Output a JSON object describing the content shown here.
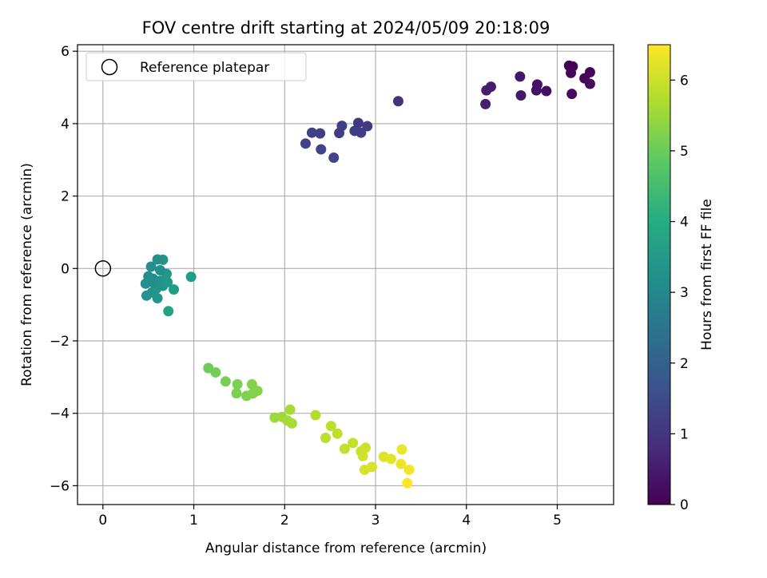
{
  "chart_data": {
    "type": "scatter",
    "title": "FOV centre drift starting at 2024/05/09 20:18:09",
    "xlabel": "Angular distance from reference (arcmin)",
    "ylabel": "Rotation from reference (arcmin)",
    "xlim": [
      -0.28,
      5.62
    ],
    "ylim": [
      -6.52,
      6.18
    ],
    "xticks": [
      0,
      1,
      2,
      3,
      4,
      5
    ],
    "yticks": [
      -6,
      -4,
      -2,
      0,
      2,
      4,
      6
    ],
    "xtick_labels": [
      "0",
      "1",
      "2",
      "3",
      "4",
      "5"
    ],
    "ytick_labels": [
      "−6",
      "−4",
      "−2",
      "0",
      "2",
      "4",
      "6"
    ],
    "grid": true,
    "legend": {
      "location": "upper-left",
      "entries": [
        "Reference platepar"
      ]
    },
    "reference_point": {
      "x": 0,
      "y": 0,
      "label": "Reference platepar"
    },
    "colorbar": {
      "label": "Hours from first FF file",
      "colormap": "viridis",
      "range": [
        0,
        6.5
      ],
      "ticks": [
        0,
        1,
        2,
        3,
        4,
        5,
        6
      ],
      "tick_labels": [
        "0",
        "1",
        "2",
        "3",
        "4",
        "5",
        "6"
      ]
    },
    "points": [
      {
        "x": 5.13,
        "y": 5.6,
        "t": 0.0
      },
      {
        "x": 5.17,
        "y": 5.58,
        "t": 0.05
      },
      {
        "x": 5.15,
        "y": 5.4,
        "t": 0.1
      },
      {
        "x": 5.36,
        "y": 5.42,
        "t": 0.12
      },
      {
        "x": 5.3,
        "y": 5.25,
        "t": 0.15
      },
      {
        "x": 5.36,
        "y": 5.1,
        "t": 0.18
      },
      {
        "x": 5.16,
        "y": 4.82,
        "t": 0.2
      },
      {
        "x": 4.88,
        "y": 4.9,
        "t": 0.25
      },
      {
        "x": 4.78,
        "y": 5.08,
        "t": 0.3
      },
      {
        "x": 4.77,
        "y": 4.92,
        "t": 0.33
      },
      {
        "x": 4.59,
        "y": 5.3,
        "t": 0.38
      },
      {
        "x": 4.6,
        "y": 4.78,
        "t": 0.42
      },
      {
        "x": 4.27,
        "y": 5.02,
        "t": 0.5
      },
      {
        "x": 4.22,
        "y": 4.92,
        "t": 0.52
      },
      {
        "x": 4.21,
        "y": 4.54,
        "t": 0.55
      },
      {
        "x": 3.25,
        "y": 4.62,
        "t": 0.95
      },
      {
        "x": 2.91,
        "y": 3.93,
        "t": 1.1
      },
      {
        "x": 2.81,
        "y": 4.02,
        "t": 1.12
      },
      {
        "x": 2.77,
        "y": 3.8,
        "t": 1.15
      },
      {
        "x": 2.84,
        "y": 3.75,
        "t": 1.18
      },
      {
        "x": 2.63,
        "y": 3.94,
        "t": 1.2
      },
      {
        "x": 2.6,
        "y": 3.74,
        "t": 1.22
      },
      {
        "x": 2.39,
        "y": 3.73,
        "t": 1.25
      },
      {
        "x": 2.3,
        "y": 3.75,
        "t": 1.27
      },
      {
        "x": 2.23,
        "y": 3.45,
        "t": 1.3
      },
      {
        "x": 2.4,
        "y": 3.29,
        "t": 1.32
      },
      {
        "x": 2.54,
        "y": 3.06,
        "t": 1.35
      },
      {
        "x": 0.97,
        "y": -0.23,
        "t": 3.65
      },
      {
        "x": 0.72,
        "y": -1.18,
        "t": 3.7
      },
      {
        "x": 0.78,
        "y": -0.58,
        "t": 3.55
      },
      {
        "x": 0.66,
        "y": 0.24,
        "t": 3.3
      },
      {
        "x": 0.6,
        "y": 0.25,
        "t": 3.25
      },
      {
        "x": 0.53,
        "y": 0.05,
        "t": 3.2
      },
      {
        "x": 0.5,
        "y": -0.22,
        "t": 3.15
      },
      {
        "x": 0.47,
        "y": -0.42,
        "t": 3.25
      },
      {
        "x": 0.48,
        "y": -0.75,
        "t": 3.35
      },
      {
        "x": 0.54,
        "y": -0.66,
        "t": 3.3
      },
      {
        "x": 0.6,
        "y": -0.82,
        "t": 3.4
      },
      {
        "x": 0.59,
        "y": -0.55,
        "t": 3.35
      },
      {
        "x": 0.56,
        "y": -0.4,
        "t": 3.2
      },
      {
        "x": 0.55,
        "y": -0.28,
        "t": 3.22
      },
      {
        "x": 0.63,
        "y": -0.34,
        "t": 3.3
      },
      {
        "x": 0.66,
        "y": -0.48,
        "t": 3.38
      },
      {
        "x": 0.7,
        "y": -0.15,
        "t": 3.42
      },
      {
        "x": 0.71,
        "y": -0.38,
        "t": 3.45
      },
      {
        "x": 0.63,
        "y": -0.05,
        "t": 3.28
      },
      {
        "x": 1.16,
        "y": -2.75,
        "t": 5.05
      },
      {
        "x": 1.24,
        "y": -2.87,
        "t": 5.1
      },
      {
        "x": 1.35,
        "y": -3.12,
        "t": 5.15
      },
      {
        "x": 1.48,
        "y": -3.2,
        "t": 5.2
      },
      {
        "x": 1.47,
        "y": -3.45,
        "t": 5.18
      },
      {
        "x": 1.58,
        "y": -3.52,
        "t": 5.22
      },
      {
        "x": 1.64,
        "y": -3.2,
        "t": 5.28
      },
      {
        "x": 1.7,
        "y": -3.38,
        "t": 5.3
      },
      {
        "x": 1.65,
        "y": -3.45,
        "t": 5.26
      },
      {
        "x": 1.89,
        "y": -4.12,
        "t": 5.55
      },
      {
        "x": 1.97,
        "y": -4.1,
        "t": 5.58
      },
      {
        "x": 2.03,
        "y": -4.2,
        "t": 5.62
      },
      {
        "x": 2.06,
        "y": -3.9,
        "t": 5.65
      },
      {
        "x": 2.08,
        "y": -4.28,
        "t": 5.66
      },
      {
        "x": 2.34,
        "y": -4.05,
        "t": 5.75
      },
      {
        "x": 2.45,
        "y": -4.68,
        "t": 5.82
      },
      {
        "x": 2.51,
        "y": -4.35,
        "t": 5.85
      },
      {
        "x": 2.58,
        "y": -4.56,
        "t": 5.88
      },
      {
        "x": 2.66,
        "y": -4.98,
        "t": 5.92
      },
      {
        "x": 2.75,
        "y": -4.82,
        "t": 5.95
      },
      {
        "x": 2.84,
        "y": -5.05,
        "t": 6.0
      },
      {
        "x": 2.89,
        "y": -4.95,
        "t": 6.02
      },
      {
        "x": 2.86,
        "y": -5.18,
        "t": 6.05
      },
      {
        "x": 2.88,
        "y": -5.56,
        "t": 6.1
      },
      {
        "x": 2.96,
        "y": -5.48,
        "t": 6.12
      },
      {
        "x": 3.09,
        "y": -5.2,
        "t": 6.2
      },
      {
        "x": 3.17,
        "y": -5.26,
        "t": 6.25
      },
      {
        "x": 3.29,
        "y": -5.0,
        "t": 6.3
      },
      {
        "x": 3.28,
        "y": -5.4,
        "t": 6.35
      },
      {
        "x": 3.37,
        "y": -5.56,
        "t": 6.4
      },
      {
        "x": 3.35,
        "y": -5.93,
        "t": 6.48
      }
    ]
  }
}
